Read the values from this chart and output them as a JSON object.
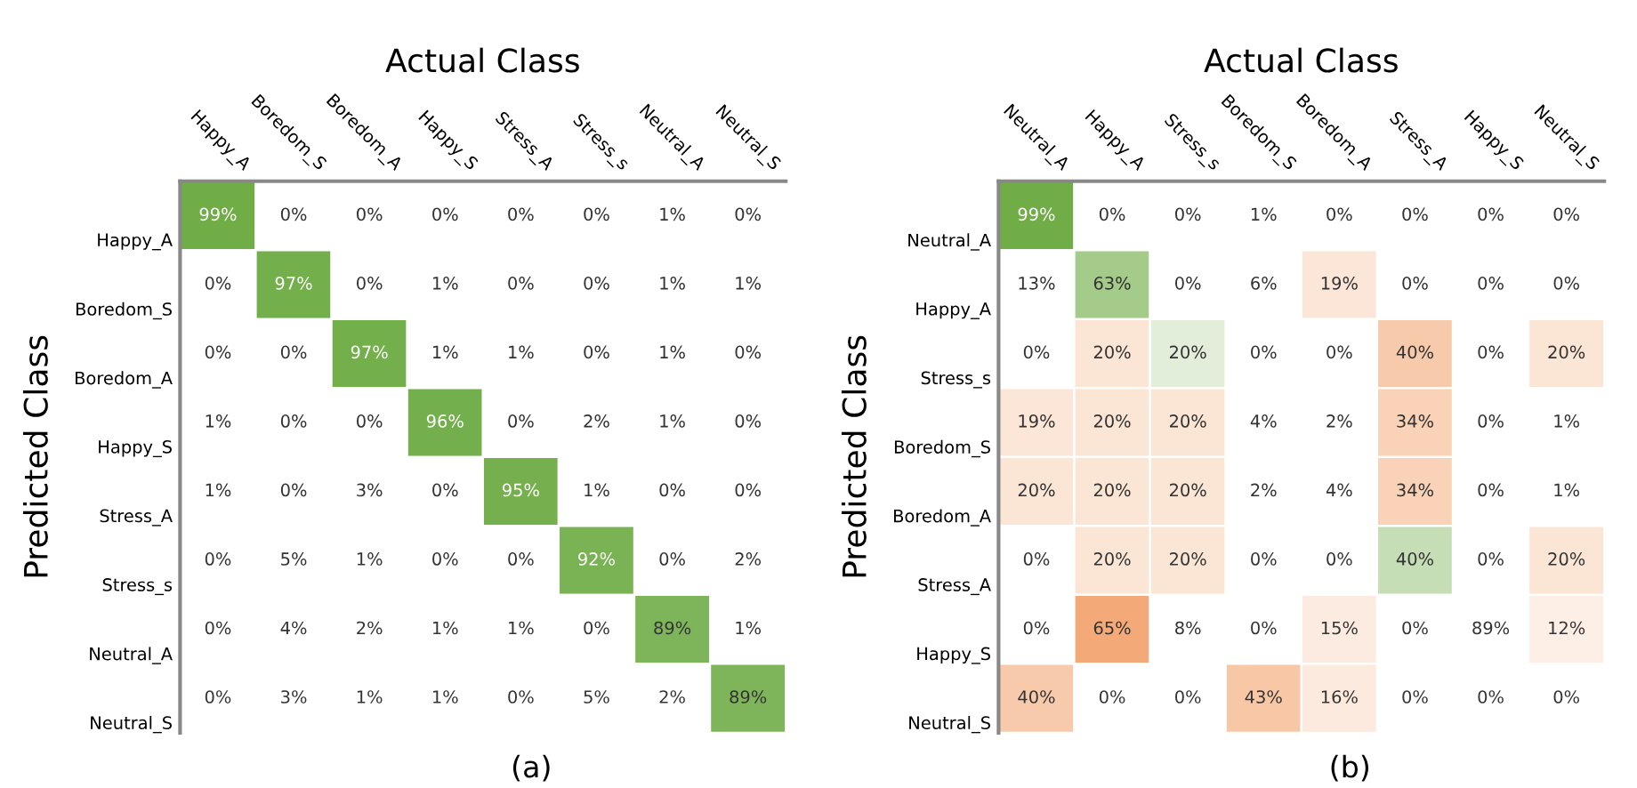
{
  "chart_data": [
    {
      "type": "heatmap",
      "xlabel": "Actual Class",
      "ylabel": "Predicted Class",
      "annotations": [
        "(a)"
      ],
      "categories": [
        "Happy_A",
        "Boredom_S",
        "Boredom_A",
        "Happy_S",
        "Stress_A",
        "Stress_s",
        "Neutral_A",
        "Neutral_S"
      ],
      "y_categories": [
        "Happy_A",
        "Boredom_S",
        "Boredom_A",
        "Happy_S",
        "Stress_A",
        "Stress_s",
        "Neutral_A",
        "Neutral_S"
      ],
      "cells": [
        [
          99,
          0,
          0,
          0,
          0,
          0,
          1,
          0
        ],
        [
          0,
          97,
          0,
          1,
          0,
          0,
          1,
          1
        ],
        [
          0,
          0,
          97,
          1,
          1,
          0,
          1,
          0
        ],
        [
          1,
          0,
          0,
          96,
          0,
          2,
          1,
          0
        ],
        [
          1,
          0,
          3,
          0,
          95,
          1,
          0,
          0
        ],
        [
          0,
          5,
          1,
          0,
          0,
          92,
          0,
          2
        ],
        [
          0,
          4,
          2,
          1,
          1,
          0,
          89,
          1
        ],
        [
          0,
          3,
          1,
          1,
          0,
          5,
          2,
          89
        ]
      ],
      "cell_labels": [
        [
          "99%",
          "0%",
          "0%",
          "0%",
          "0%",
          "0%",
          "1%",
          "0%"
        ],
        [
          "0%",
          "97%",
          "0%",
          "1%",
          "0%",
          "0%",
          "1%",
          "1%"
        ],
        [
          "0%",
          "0%",
          "97%",
          "1%",
          "1%",
          "0%",
          "1%",
          "0%"
        ],
        [
          "1%",
          "0%",
          "0%",
          "96%",
          "0%",
          "2%",
          "1%",
          "0%"
        ],
        [
          "1%",
          "0%",
          "3%",
          "0%",
          "95%",
          "1%",
          "0%",
          "0%"
        ],
        [
          "0%",
          "5%",
          "1%",
          "0%",
          "0%",
          "92%",
          "0%",
          "2%"
        ],
        [
          "0%",
          "4%",
          "2%",
          "1%",
          "1%",
          "0%",
          "89%",
          "1%"
        ],
        [
          "0%",
          "3%",
          "1%",
          "1%",
          "0%",
          "5%",
          "2%",
          "89%"
        ]
      ],
      "colors": [
        [
          "#70ad47",
          "#ffffff",
          "#ffffff",
          "#ffffff",
          "#ffffff",
          "#ffffff",
          "#ffffff",
          "#ffffff"
        ],
        [
          "#ffffff",
          "#70ad47",
          "#ffffff",
          "#ffffff",
          "#ffffff",
          "#ffffff",
          "#ffffff",
          "#ffffff"
        ],
        [
          "#ffffff",
          "#ffffff",
          "#70ad47",
          "#ffffff",
          "#ffffff",
          "#ffffff",
          "#ffffff",
          "#ffffff"
        ],
        [
          "#ffffff",
          "#ffffff",
          "#ffffff",
          "#70ad47",
          "#ffffff",
          "#ffffff",
          "#ffffff",
          "#ffffff"
        ],
        [
          "#ffffff",
          "#ffffff",
          "#ffffff",
          "#ffffff",
          "#70ad47",
          "#ffffff",
          "#ffffff",
          "#ffffff"
        ],
        [
          "#ffffff",
          "#ffffff",
          "#ffffff",
          "#ffffff",
          "#ffffff",
          "#70ad47",
          "#ffffff",
          "#ffffff"
        ],
        [
          "#ffffff",
          "#ffffff",
          "#ffffff",
          "#ffffff",
          "#ffffff",
          "#ffffff",
          "#70ad47",
          "#ffffff"
        ],
        [
          "#ffffff",
          "#ffffff",
          "#ffffff",
          "#ffffff",
          "#ffffff",
          "#ffffff",
          "#ffffff",
          "#70ad47"
        ]
      ]
    },
    {
      "type": "heatmap",
      "xlabel": "Actual Class",
      "ylabel": "Predicted Class",
      "annotations": [
        "(b)"
      ],
      "categories": [
        "Neutral_A",
        "Happy_A",
        "Stress_s",
        "Boredom_S",
        "Boredom_A",
        "Stress_A",
        "Happy_S",
        "Neutral_S"
      ],
      "y_categories": [
        "Neutral_A",
        "Happy_A",
        "Stress_s",
        "Boredom_S",
        "Boredom_A",
        "Stress_A",
        "Happy_S",
        "Neutral_S"
      ],
      "cells": [
        [
          99,
          0,
          0,
          1,
          0,
          0,
          0,
          0
        ],
        [
          13,
          63,
          0,
          6,
          19,
          0,
          0,
          0
        ],
        [
          0,
          20,
          20,
          0,
          0,
          40,
          0,
          20
        ],
        [
          19,
          20,
          20,
          4,
          2,
          34,
          0,
          1
        ],
        [
          20,
          20,
          20,
          2,
          4,
          34,
          0,
          1
        ],
        [
          0,
          20,
          20,
          0,
          0,
          40,
          0,
          20
        ],
        [
          0,
          65,
          8,
          0,
          15,
          0,
          89,
          12
        ],
        [
          40,
          0,
          0,
          43,
          16,
          0,
          0,
          0
        ]
      ],
      "cell_labels": [
        [
          "99%",
          "0%",
          "0%",
          "1%",
          "0%",
          "0%",
          "0%",
          "0%"
        ],
        [
          "13%",
          "63%",
          "0%",
          "6%",
          "19%",
          "0%",
          "0%",
          "0%"
        ],
        [
          "0%",
          "20%",
          "20%",
          "0%",
          "0%",
          "40%",
          "0%",
          "20%"
        ],
        [
          "19%",
          "20%",
          "20%",
          "4%",
          "2%",
          "34%",
          "0%",
          "1%"
        ],
        [
          "20%",
          "20%",
          "20%",
          "2%",
          "4%",
          "34%",
          "0%",
          "1%"
        ],
        [
          "0%",
          "20%",
          "20%",
          "0%",
          "0%",
          "40%",
          "0%",
          "20%"
        ],
        [
          "0%",
          "65%",
          "8%",
          "0%",
          "15%",
          "0%",
          "89%",
          "12%"
        ],
        [
          "40%",
          "0%",
          "0%",
          "43%",
          "16%",
          "0%",
          "0%",
          "0%"
        ]
      ],
      "colors": [
        [
          "#70ad47",
          "#ffffff",
          "#ffffff",
          "#ffffff",
          "#ffffff",
          "#ffffff",
          "#ffffff",
          "#ffffff"
        ],
        [
          "#ffffff",
          "#70ad47",
          "#ffffff",
          "#ffffff",
          "#ed7d31",
          "#ffffff",
          "#ffffff",
          "#ffffff"
        ],
        [
          "#ffffff",
          "#ed7d31",
          "#70ad47",
          "#ffffff",
          "#ffffff",
          "#ed7d31",
          "#ffffff",
          "#ed7d31"
        ],
        [
          "#ed7d31",
          "#ed7d31",
          "#ed7d31",
          "#ffffff",
          "#ffffff",
          "#ed7d31",
          "#ffffff",
          "#ffffff"
        ],
        [
          "#ed7d31",
          "#ed7d31",
          "#ed7d31",
          "#ffffff",
          "#ffffff",
          "#ed7d31",
          "#ffffff",
          "#ffffff"
        ],
        [
          "#ffffff",
          "#ed7d31",
          "#ed7d31",
          "#ffffff",
          "#ffffff",
          "#70ad47",
          "#ffffff",
          "#ed7d31"
        ],
        [
          "#ffffff",
          "#ed7d31",
          "#ffffff",
          "#ffffff",
          "#ed7d31",
          "#ffffff",
          "#ffffff",
          "#ed7d31"
        ],
        [
          "#ed7d31",
          "#ffffff",
          "#ffffff",
          "#ed7d31",
          "#ed7d31",
          "#ffffff",
          "#ffffff",
          "#ffffff"
        ]
      ]
    }
  ]
}
